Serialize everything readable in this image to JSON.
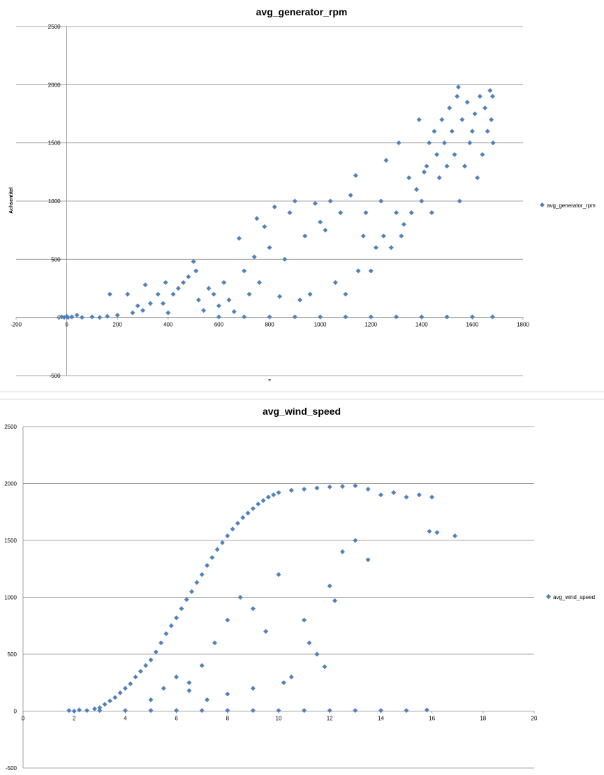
{
  "colors": {
    "series": "#4f81bd",
    "grid": "#868686",
    "sheet_gridline": "#d9d9d9"
  },
  "chart_data": [
    {
      "type": "scatter",
      "title": "avg_generator_rpm",
      "xlabel": "=",
      "ylabel": "Achsentitel",
      "xlim": [
        -200,
        1800
      ],
      "ylim": [
        -500,
        2500
      ],
      "x_ticks": [
        "-200",
        "0",
        "200",
        "400",
        "600",
        "800",
        "1000",
        "1200",
        "1400",
        "1600",
        "1800"
      ],
      "y_ticks": [
        "-500",
        "0",
        "500",
        "1000",
        "1500",
        "2000",
        "2500"
      ],
      "grid": "horizontal major gridlines",
      "legend": "right",
      "series": [
        {
          "name": "avg_generator_rpm",
          "note_points": "representative sample of dense point cloud",
          "points": [
            [
              -20,
              5
            ],
            [
              -10,
              0
            ],
            [
              0,
              10
            ],
            [
              5,
              0
            ],
            [
              20,
              5
            ],
            [
              40,
              20
            ],
            [
              60,
              0
            ],
            [
              100,
              5
            ],
            [
              130,
              0
            ],
            [
              160,
              10
            ],
            [
              170,
              200
            ],
            [
              200,
              20
            ],
            [
              240,
              200
            ],
            [
              260,
              40
            ],
            [
              280,
              100
            ],
            [
              300,
              60
            ],
            [
              310,
              280
            ],
            [
              330,
              120
            ],
            [
              360,
              200
            ],
            [
              380,
              120
            ],
            [
              390,
              300
            ],
            [
              400,
              40
            ],
            [
              420,
              200
            ],
            [
              440,
              250
            ],
            [
              460,
              300
            ],
            [
              480,
              350
            ],
            [
              500,
              480
            ],
            [
              510,
              400
            ],
            [
              520,
              150
            ],
            [
              540,
              60
            ],
            [
              560,
              250
            ],
            [
              580,
              200
            ],
            [
              600,
              100
            ],
            [
              620,
              300
            ],
            [
              640,
              150
            ],
            [
              660,
              50
            ],
            [
              680,
              680
            ],
            [
              700,
              400
            ],
            [
              720,
              200
            ],
            [
              740,
              520
            ],
            [
              750,
              850
            ],
            [
              760,
              300
            ],
            [
              780,
              780
            ],
            [
              800,
              600
            ],
            [
              820,
              950
            ],
            [
              840,
              180
            ],
            [
              860,
              500
            ],
            [
              880,
              900
            ],
            [
              900,
              1000
            ],
            [
              920,
              150
            ],
            [
              940,
              700
            ],
            [
              960,
              200
            ],
            [
              980,
              980
            ],
            [
              1000,
              820
            ],
            [
              1020,
              750
            ],
            [
              1040,
              1000
            ],
            [
              1060,
              300
            ],
            [
              1080,
              900
            ],
            [
              1100,
              200
            ],
            [
              1120,
              1050
            ],
            [
              1140,
              1220
            ],
            [
              1150,
              400
            ],
            [
              1170,
              700
            ],
            [
              1180,
              900
            ],
            [
              1200,
              400
            ],
            [
              1220,
              600
            ],
            [
              1240,
              1000
            ],
            [
              1250,
              700
            ],
            [
              1260,
              1350
            ],
            [
              1280,
              600
            ],
            [
              1300,
              900
            ],
            [
              1310,
              1500
            ],
            [
              1320,
              700
            ],
            [
              1330,
              800
            ],
            [
              1350,
              1200
            ],
            [
              1360,
              900
            ],
            [
              1380,
              1100
            ],
            [
              1390,
              1700
            ],
            [
              1400,
              1000
            ],
            [
              1410,
              1250
            ],
            [
              1420,
              1300
            ],
            [
              1430,
              1500
            ],
            [
              1440,
              900
            ],
            [
              1450,
              1600
            ],
            [
              1460,
              1400
            ],
            [
              1470,
              1200
            ],
            [
              1480,
              1700
            ],
            [
              1490,
              1500
            ],
            [
              1500,
              1300
            ],
            [
              1510,
              1800
            ],
            [
              1520,
              1600
            ],
            [
              1530,
              1400
            ],
            [
              1540,
              1900
            ],
            [
              1545,
              1980
            ],
            [
              1550,
              1000
            ],
            [
              1560,
              1700
            ],
            [
              1570,
              1300
            ],
            [
              1580,
              1850
            ],
            [
              1590,
              1500
            ],
            [
              1600,
              1600
            ],
            [
              1610,
              1750
            ],
            [
              1620,
              1200
            ],
            [
              1630,
              1900
            ],
            [
              1640,
              1400
            ],
            [
              1650,
              1800
            ],
            [
              1660,
              1600
            ],
            [
              1670,
              1950
            ],
            [
              1675,
              1700
            ],
            [
              1680,
              1900
            ],
            [
              1682,
              1500
            ],
            [
              1000,
              5
            ],
            [
              1100,
              5
            ],
            [
              1200,
              5
            ],
            [
              1300,
              5
            ],
            [
              1400,
              5
            ],
            [
              1500,
              5
            ],
            [
              1600,
              5
            ],
            [
              1680,
              5
            ],
            [
              900,
              5
            ],
            [
              800,
              5
            ],
            [
              700,
              5
            ],
            [
              600,
              5
            ]
          ]
        }
      ]
    },
    {
      "type": "scatter",
      "title": "avg_wind_speed",
      "xlabel": "",
      "ylabel": "",
      "xlim": [
        0,
        20
      ],
      "ylim": [
        -500,
        2500
      ],
      "x_ticks": [
        "0",
        "2",
        "4",
        "6",
        "8",
        "10",
        "12",
        "14",
        "16",
        "18",
        "20"
      ],
      "y_ticks": [
        "-500",
        "0",
        "500",
        "1000",
        "1500",
        "2000",
        "2500"
      ],
      "grid": "horizontal major gridlines",
      "legend": "right",
      "series": [
        {
          "name": "avg_wind_speed",
          "note_points": "representative sample of dense point cloud",
          "points": [
            [
              1.8,
              5
            ],
            [
              2.0,
              0
            ],
            [
              2.2,
              10
            ],
            [
              2.5,
              5
            ],
            [
              2.8,
              20
            ],
            [
              3.0,
              30
            ],
            [
              3.2,
              60
            ],
            [
              3.4,
              90
            ],
            [
              3.6,
              120
            ],
            [
              3.8,
              160
            ],
            [
              4.0,
              200
            ],
            [
              4.2,
              240
            ],
            [
              4.4,
              300
            ],
            [
              4.6,
              350
            ],
            [
              4.8,
              400
            ],
            [
              5.0,
              450
            ],
            [
              5.2,
              520
            ],
            [
              5.4,
              600
            ],
            [
              5.6,
              680
            ],
            [
              5.8,
              750
            ],
            [
              6.0,
              820
            ],
            [
              6.2,
              900
            ],
            [
              6.4,
              980
            ],
            [
              6.6,
              1050
            ],
            [
              6.8,
              1130
            ],
            [
              7.0,
              1200
            ],
            [
              7.2,
              1280
            ],
            [
              7.4,
              1350
            ],
            [
              7.6,
              1420
            ],
            [
              7.8,
              1480
            ],
            [
              8.0,
              1540
            ],
            [
              8.2,
              1600
            ],
            [
              8.4,
              1650
            ],
            [
              8.6,
              1700
            ],
            [
              8.8,
              1740
            ],
            [
              9.0,
              1780
            ],
            [
              9.2,
              1820
            ],
            [
              9.4,
              1850
            ],
            [
              9.6,
              1880
            ],
            [
              9.8,
              1900
            ],
            [
              10.0,
              1920
            ],
            [
              10.5,
              1940
            ],
            [
              11.0,
              1950
            ],
            [
              11.5,
              1960
            ],
            [
              12.0,
              1970
            ],
            [
              12.5,
              1975
            ],
            [
              13.0,
              1980
            ],
            [
              13.5,
              1950
            ],
            [
              14.0,
              1900
            ],
            [
              14.5,
              1920
            ],
            [
              15.0,
              1880
            ],
            [
              15.5,
              1900
            ],
            [
              16.0,
              1880
            ],
            [
              15.9,
              1580
            ],
            [
              16.2,
              1570
            ],
            [
              16.9,
              1540
            ],
            [
              5.0,
              100
            ],
            [
              5.5,
              200
            ],
            [
              6.0,
              300
            ],
            [
              6.5,
              250
            ],
            [
              7.0,
              400
            ],
            [
              7.5,
              600
            ],
            [
              8.0,
              800
            ],
            [
              8.5,
              1000
            ],
            [
              9.0,
              900
            ],
            [
              9.5,
              700
            ],
            [
              10.0,
              1200
            ],
            [
              10.5,
              300
            ],
            [
              11.0,
              800
            ],
            [
              11.5,
              500
            ],
            [
              12.0,
              1100
            ],
            [
              12.5,
              1400
            ],
            [
              13.0,
              1500
            ],
            [
              13.5,
              1330
            ],
            [
              11.2,
              600
            ],
            [
              12.2,
              970
            ],
            [
              9.0,
              200
            ],
            [
              8.0,
              150
            ],
            [
              7.2,
              100
            ],
            [
              6.5,
              180
            ],
            [
              10.2,
              250
            ],
            [
              11.8,
              390
            ],
            [
              3,
              5
            ],
            [
              4,
              5
            ],
            [
              5,
              5
            ],
            [
              6,
              5
            ],
            [
              7,
              5
            ],
            [
              8,
              5
            ],
            [
              9,
              5
            ],
            [
              10,
              5
            ],
            [
              11,
              5
            ],
            [
              12,
              5
            ],
            [
              13,
              5
            ],
            [
              14,
              5
            ],
            [
              15,
              5
            ],
            [
              15.8,
              10
            ]
          ]
        }
      ]
    }
  ]
}
